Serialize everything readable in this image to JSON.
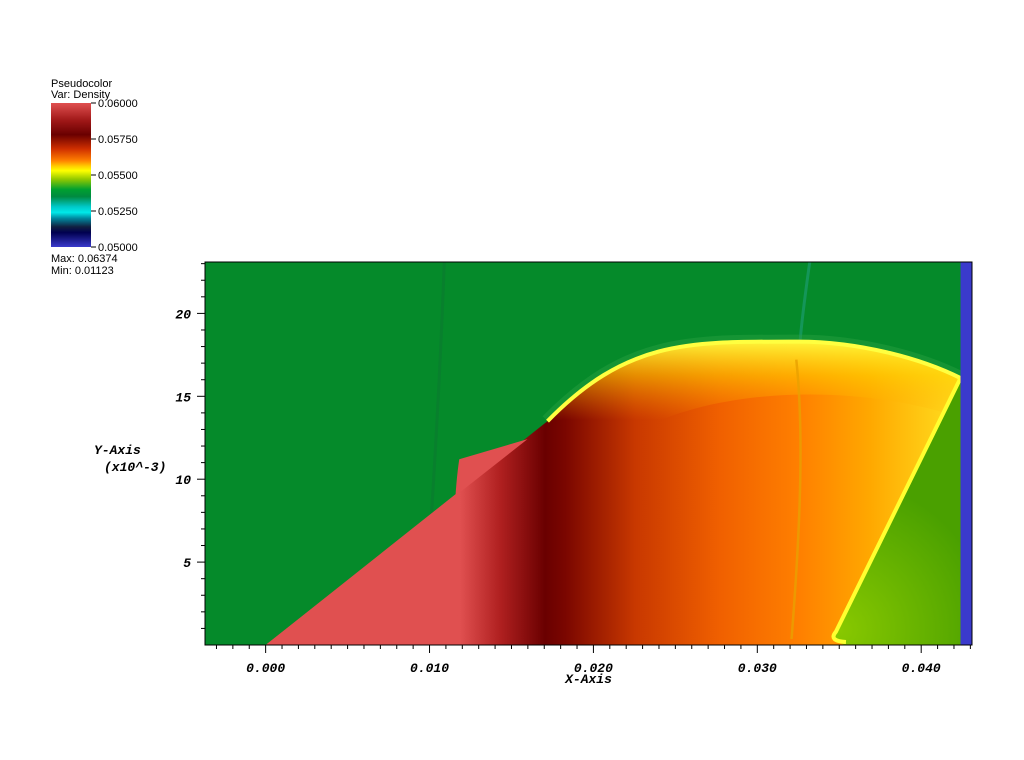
{
  "chart_data": {
    "type": "heatmap",
    "legend": {
      "title": "Pseudocolor",
      "var_label": "Var: Density",
      "ticks": [
        "0.06000",
        "0.05750",
        "0.05500",
        "0.05250",
        "0.05000"
      ],
      "max_label": "Max: 0.06374",
      "min_label": "Min: 0.01123",
      "colors_top_to_bottom": [
        "#e05050",
        "#6a0000",
        "#ff7000",
        "#ffff00",
        "#00a030",
        "#00e8e8",
        "#0000a0",
        "#3a3acc"
      ]
    },
    "x_axis": {
      "title": "X-Axis",
      "range": [
        -0.0037,
        0.0431
      ],
      "major_ticks": [
        0.0,
        0.01,
        0.02,
        0.03,
        0.04
      ],
      "tick_labels": [
        "0.000",
        "0.010",
        "0.020",
        "0.030",
        "0.040"
      ],
      "minor_step": 0.001
    },
    "y_axis": {
      "title_line1": "Y-Axis",
      "title_line2": "(x10^-3)",
      "range": [
        0,
        23.1
      ],
      "major_ticks": [
        5,
        10,
        15,
        20
      ],
      "tick_labels": [
        "5",
        "10",
        "15",
        "20"
      ],
      "minor_step": 1
    },
    "regions": {
      "background_color": "#058a2a",
      "wall_color": "#3a3acc",
      "wedge_color": "#e05050",
      "dark_band_color": "#6a0000",
      "shocked_color": "#ff7a00",
      "shock_front_color": "#ffff30",
      "post_shock_color": "#6cb800"
    },
    "geometry_data_units": {
      "wedge_tip": [
        0.0,
        0.0
      ],
      "wedge_top": [
        0.0172,
        13.5
      ],
      "shock_apex": [
        0.0325,
        18.3
      ],
      "wall_top_junction": [
        0.0424,
        16.1
      ],
      "reflected_foot": [
        0.0348,
        0.2
      ],
      "wall_x": 0.0424,
      "dark_band_x": 0.017
    }
  }
}
